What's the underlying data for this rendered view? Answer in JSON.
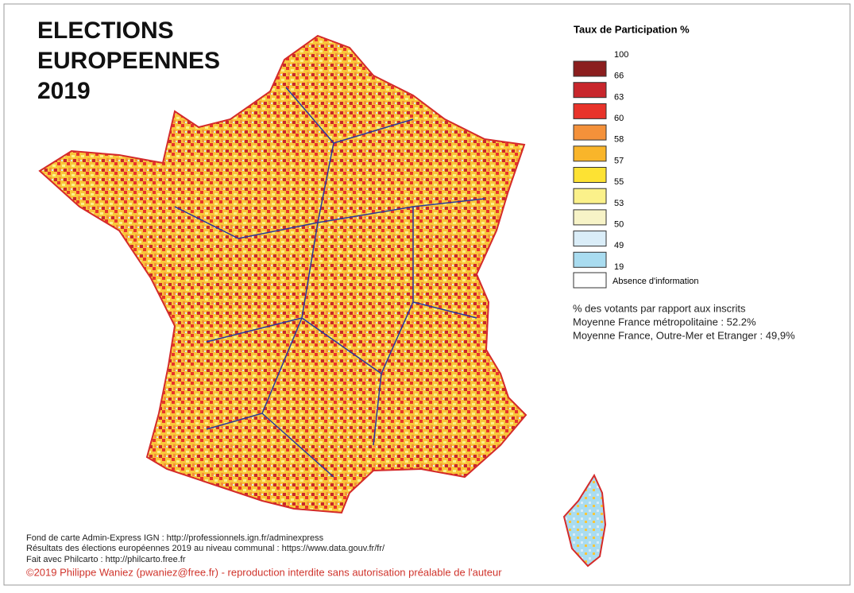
{
  "title": [
    "ELECTIONS",
    "EUROPEENNES",
    "2019"
  ],
  "legend": {
    "title": "Taux de Participation %",
    "breaks": [
      100,
      66,
      63,
      60,
      58,
      57,
      55,
      53,
      50,
      49,
      19
    ],
    "colors": [
      "#8b1e1e",
      "#c8262c",
      "#e8332a",
      "#f4913a",
      "#f9b52a",
      "#fde233",
      "#fbf18a",
      "#f7f3c7",
      "#daedf8",
      "#a9dcf0"
    ],
    "no_data": "Absence d'information"
  },
  "notes": [
    "% des votants par rapport aux inscrits",
    "Moyenne France métropolitaine : 52.2%",
    "Moyenne France, Outre-Mer et Etranger : 49,9%"
  ],
  "sources": [
    "Fond de carte Admin-Express IGN : http://professionnels.ign.fr/adminexpress",
    "Résultats des élections européennes 2019 au niveau communal : https://www.data.gouv.fr/fr/",
    "Fait avec Philcarto : http://philcarto.free.fr"
  ],
  "copyright": "©2019 Philippe Waniez (pwaniez@free.fr) - reproduction interdite sans autorisation préalable de l'auteur"
}
